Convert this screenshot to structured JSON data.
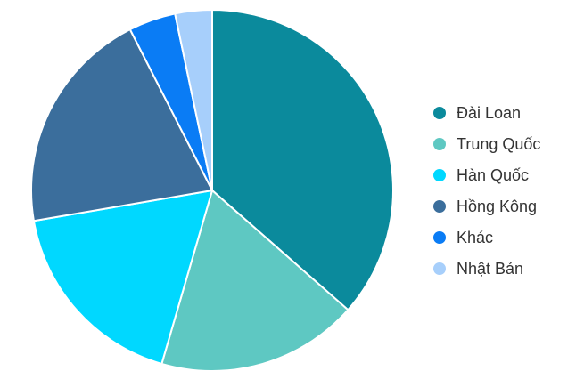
{
  "chart_data": {
    "type": "pie",
    "title": "",
    "categories": [
      "Đài Loan",
      "Trung Quốc",
      "Hàn Quốc",
      "Hồng Kông",
      "Khác",
      "Nhật Bản"
    ],
    "values": [
      36.5,
      18.0,
      17.8,
      20.2,
      4.2,
      3.3
    ],
    "colors": [
      "#0B8A9C",
      "#5EC8C2",
      "#00D8FF",
      "#3B6E9C",
      "#0A7CF5",
      "#A7CFFB"
    ],
    "start_angle_deg": 0,
    "direction": "clockwise",
    "legend_position": "right"
  }
}
